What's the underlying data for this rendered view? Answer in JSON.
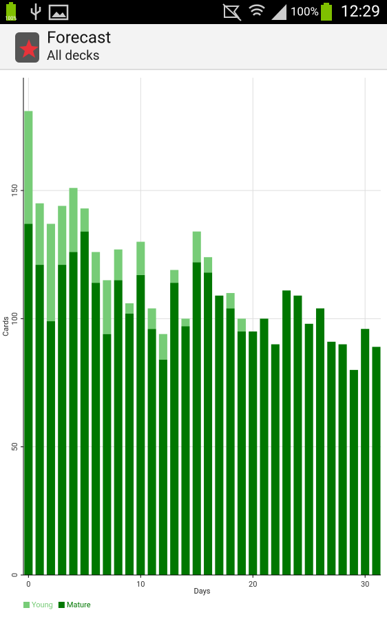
{
  "status_bar": {
    "notification_battery": "100%",
    "battery": "100%",
    "time": "12:29"
  },
  "header": {
    "title": "Forecast",
    "subtitle": "All decks"
  },
  "chart_data": {
    "type": "bar",
    "stacked": true,
    "x": [
      0,
      1,
      2,
      3,
      4,
      5,
      6,
      7,
      8,
      9,
      10,
      11,
      12,
      13,
      14,
      15,
      16,
      17,
      18,
      19,
      20,
      21,
      22,
      23,
      24,
      25,
      26,
      27,
      28,
      29,
      30,
      31
    ],
    "series": [
      {
        "name": "Young",
        "color": "#77cc77",
        "values": [
          44,
          24,
          38,
          23,
          25,
          9,
          12,
          21,
          12,
          4,
          13,
          8,
          10,
          5,
          3,
          12,
          6,
          0,
          6,
          5,
          0,
          0,
          0,
          0,
          0,
          0,
          0,
          0,
          0,
          0,
          0,
          0
        ]
      },
      {
        "name": "Mature",
        "color": "#007700",
        "values": [
          137,
          121,
          99,
          121,
          126,
          134,
          114,
          94,
          115,
          102,
          117,
          96,
          84,
          114,
          97,
          122,
          118,
          109,
          104,
          95,
          95,
          100,
          90,
          111,
          109,
          98,
          104,
          91,
          90,
          80,
          96,
          89
        ]
      }
    ],
    "xlabel": "Days",
    "ylabel": "Cards",
    "xlim": [
      -0.45,
      31.4
    ],
    "ylim": [
      0,
      194
    ],
    "xticks": [
      0,
      10,
      20,
      30
    ],
    "yticks": [
      0,
      50,
      100,
      150
    ],
    "grid": true,
    "legend": "bottom-left"
  }
}
